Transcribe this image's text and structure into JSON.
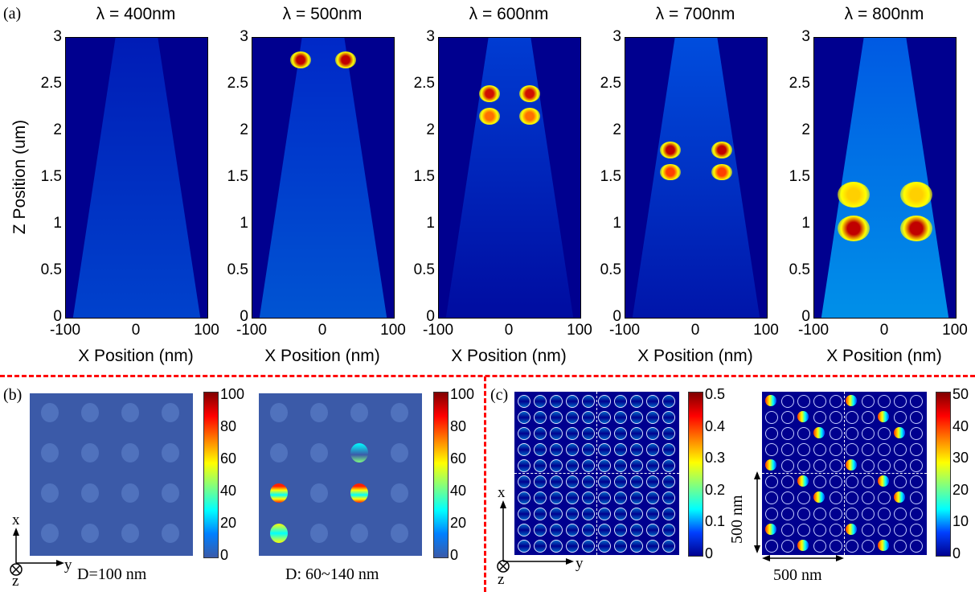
{
  "panel_a": {
    "label": "(a)",
    "ylabel": "Z Position (um)",
    "xlabel": "X Position (nm)",
    "xticks": [
      "-100",
      "0",
      "100"
    ],
    "yticks": [
      "0",
      "0.5",
      "1",
      "1.5",
      "2",
      "2.5",
      "3"
    ],
    "plots": [
      {
        "title": "λ = 400nm"
      },
      {
        "title": "λ = 500nm"
      },
      {
        "title": "λ = 600nm"
      },
      {
        "title": "λ = 700nm"
      },
      {
        "title": "λ = 800nm"
      }
    ]
  },
  "panel_b": {
    "label": "(b)",
    "colorbar_ticks": [
      "100",
      "80",
      "60",
      "40",
      "20",
      "0"
    ],
    "caption_left": "D=100 nm",
    "caption_right": "D: 60~140 nm",
    "axis_x": "x",
    "axis_y": "y",
    "axis_z": "z"
  },
  "panel_c": {
    "label": "(c)",
    "colorbar1_ticks": [
      "0.5",
      "0.4",
      "0.3",
      "0.2",
      "0.1",
      "0"
    ],
    "colorbar2_ticks": [
      "50",
      "40",
      "30",
      "20",
      "10",
      "0"
    ],
    "dim_vertical": "500 nm",
    "dim_horizontal": "500 nm",
    "axis_x": "x",
    "axis_y": "y",
    "axis_z": "z"
  },
  "colors": {
    "background_field": "#00008f",
    "divider": "#ff0000",
    "panel_b_background": "#3b5aa8"
  }
}
